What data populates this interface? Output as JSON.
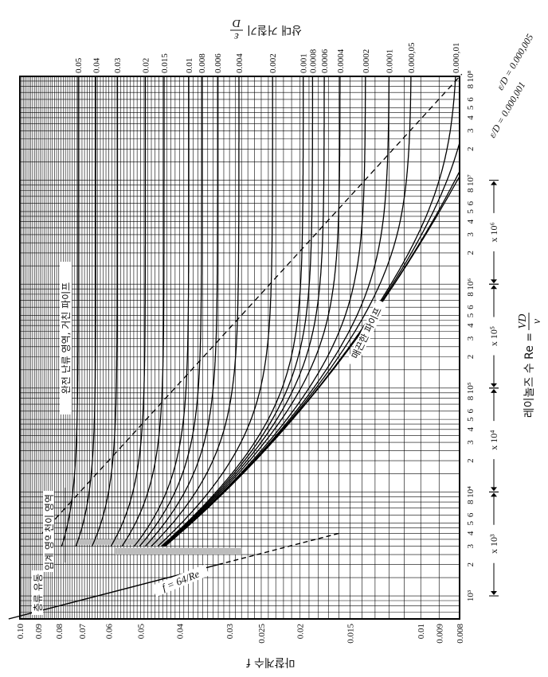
{
  "chart_data": {
    "type": "line",
    "title": "",
    "orientation": "rotated-90",
    "xlabel": "레이놀즈 수 Re = VD/ν",
    "xlabel_prefix": "레이놀즈 수  Re =",
    "xlabel_num": "VD",
    "xlabel_den": "ν",
    "ylabel": "마찰계수 f",
    "top_axis_label": "상대 거칠기 ε/D",
    "top_axis_prefix": "상대 거칠기",
    "top_axis_num": "ε",
    "top_axis_den": "D",
    "x_scale": "log",
    "y_scale": "log",
    "xlim": [
      600,
      100000000
    ],
    "ylim": [
      0.008,
      0.1
    ],
    "grid": true,
    "y_ticks": [
      {
        "value": 0.1,
        "label": "0.10"
      },
      {
        "value": 0.09,
        "label": "0.09"
      },
      {
        "value": 0.08,
        "label": "0.08"
      },
      {
        "value": 0.07,
        "label": "0.07"
      },
      {
        "value": 0.06,
        "label": "0.06"
      },
      {
        "value": 0.05,
        "label": "0.05"
      },
      {
        "value": 0.04,
        "label": "0.04"
      },
      {
        "value": 0.03,
        "label": "0.03"
      },
      {
        "value": 0.025,
        "label": "0.025"
      },
      {
        "value": 0.02,
        "label": "0.02"
      },
      {
        "value": 0.015,
        "label": "0.015"
      },
      {
        "value": 0.01,
        "label": "0.01"
      },
      {
        "value": 0.009,
        "label": "0.009"
      },
      {
        "value": 0.008,
        "label": "0.008"
      }
    ],
    "x_ticks": [
      {
        "value": 1000,
        "label": "10³"
      },
      {
        "value": 2000,
        "label": "2"
      },
      {
        "value": 3000,
        "label": "3"
      },
      {
        "value": 4000,
        "label": "4"
      },
      {
        "value": 5000,
        "label": "5"
      },
      {
        "value": 6000,
        "label": "6"
      },
      {
        "value": 8000,
        "label": "8"
      },
      {
        "value": 10000,
        "label": "10⁴"
      },
      {
        "value": 20000,
        "label": "2"
      },
      {
        "value": 30000,
        "label": "3"
      },
      {
        "value": 40000,
        "label": "4"
      },
      {
        "value": 50000,
        "label": "5"
      },
      {
        "value": 60000,
        "label": "6"
      },
      {
        "value": 80000,
        "label": "8"
      },
      {
        "value": 100000,
        "label": "10⁵"
      },
      {
        "value": 200000,
        "label": "2"
      },
      {
        "value": 300000,
        "label": "3"
      },
      {
        "value": 400000,
        "label": "4"
      },
      {
        "value": 500000,
        "label": "5"
      },
      {
        "value": 600000,
        "label": "6"
      },
      {
        "value": 800000,
        "label": "8"
      },
      {
        "value": 1000000,
        "label": "10⁶"
      },
      {
        "value": 2000000,
        "label": "2"
      },
      {
        "value": 3000000,
        "label": "3"
      },
      {
        "value": 4000000,
        "label": "4"
      },
      {
        "value": 5000000,
        "label": "5"
      },
      {
        "value": 6000000,
        "label": "6"
      },
      {
        "value": 8000000,
        "label": "8"
      },
      {
        "value": 10000000,
        "label": "10⁷"
      },
      {
        "value": 20000000,
        "label": "2"
      },
      {
        "value": 30000000,
        "label": "3"
      },
      {
        "value": 40000000,
        "label": "4"
      },
      {
        "value": 50000000,
        "label": "5"
      },
      {
        "value": 60000000,
        "label": "6"
      },
      {
        "value": 80000000,
        "label": "8"
      },
      {
        "value": 100000000,
        "label": "10⁸"
      }
    ],
    "decade_multipliers": [
      {
        "from": 1000,
        "to": 10000,
        "label": "x 10³"
      },
      {
        "from": 10000,
        "to": 100000,
        "label": "x 10⁴"
      },
      {
        "from": 100000,
        "to": 1000000,
        "label": "x 10⁵"
      },
      {
        "from": 1000000,
        "to": 10000000,
        "label": "x 10⁶"
      }
    ],
    "roughness_labels": [
      {
        "label": "0.05",
        "eps": 0.05
      },
      {
        "label": "0.04",
        "eps": 0.04
      },
      {
        "label": "0.03",
        "eps": 0.03
      },
      {
        "label": "0.02",
        "eps": 0.02
      },
      {
        "label": "0.015",
        "eps": 0.015
      },
      {
        "label": "0.01",
        "eps": 0.01
      },
      {
        "label": "0.008",
        "eps": 0.008
      },
      {
        "label": "0.006",
        "eps": 0.006
      },
      {
        "label": "0.004",
        "eps": 0.004
      },
      {
        "label": "0.002",
        "eps": 0.002
      },
      {
        "label": "0.001",
        "eps": 0.001
      },
      {
        "label": "0.0008",
        "eps": 0.0008
      },
      {
        "label": "0.0006",
        "eps": 0.0006
      },
      {
        "label": "0.0004",
        "eps": 0.0004
      },
      {
        "label": "0.0002",
        "eps": 0.0002
      },
      {
        "label": "0.0001",
        "eps": 0.0001
      },
      {
        "label": "0.000,05",
        "eps": 5e-05
      },
      {
        "label": "0.000,01",
        "eps": 1e-05
      }
    ],
    "series": [
      {
        "eps": 0.05
      },
      {
        "eps": 0.04
      },
      {
        "eps": 0.03
      },
      {
        "eps": 0.02
      },
      {
        "eps": 0.015
      },
      {
        "eps": 0.01
      },
      {
        "eps": 0.008
      },
      {
        "eps": 0.006
      },
      {
        "eps": 0.004
      },
      {
        "eps": 0.002
      },
      {
        "eps": 0.001
      },
      {
        "eps": 0.0008
      },
      {
        "eps": 0.0006
      },
      {
        "eps": 0.0004
      },
      {
        "eps": 0.0002
      },
      {
        "eps": 0.0001
      },
      {
        "eps": 5e-05
      },
      {
        "eps": 1e-05
      },
      {
        "eps": 5e-06
      },
      {
        "eps": 1e-06
      },
      {
        "eps": 0
      }
    ],
    "laminar_line": {
      "label": "f = 64/Re",
      "x": [
        600,
        4000
      ],
      "y": [
        0.1067,
        0.016
      ]
    },
    "laminar_region_label": "층류 유동",
    "critical_zone_label": "임계 영역",
    "transition_zone_label": "천이 영역",
    "complete_turbulence_label": "완전 난류 영역, 거친 파이프",
    "smooth_pipe_label": "매끈한 파이프",
    "small_eps_labels": [
      "ε/D = 0.000,005",
      "ε/D = 0.000,001"
    ],
    "colors": {
      "line": "#000000",
      "shade": "#bdbdbd",
      "background": "#ffffff"
    }
  }
}
